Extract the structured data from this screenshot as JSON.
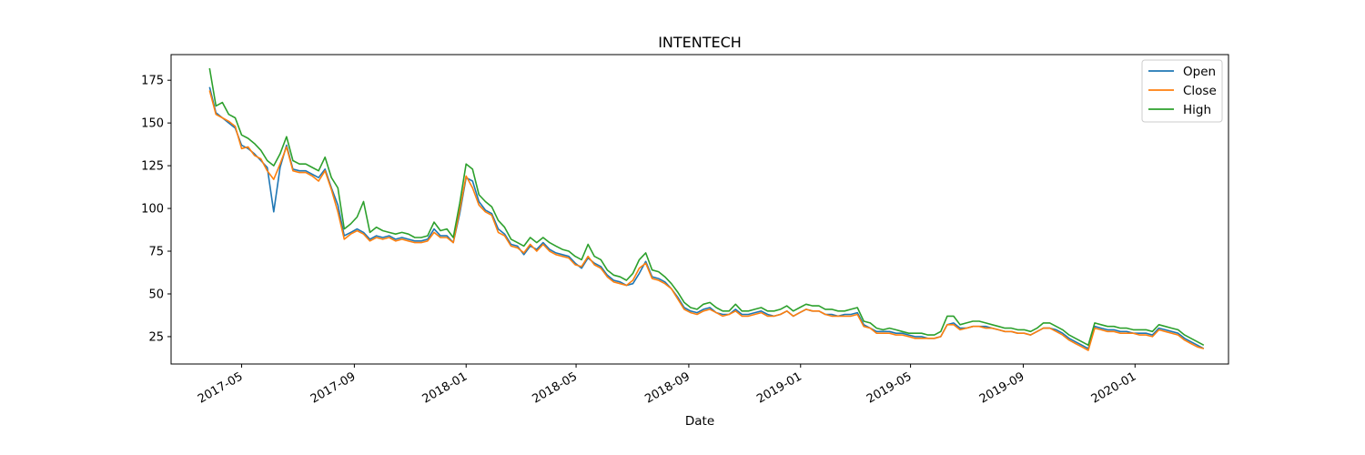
{
  "chart_data": {
    "type": "line",
    "title": "INTENTECH",
    "xlabel": "Date",
    "ylabel": "",
    "x_ticks": [
      "2017-05",
      "2017-09",
      "2018-01",
      "2018-05",
      "2018-09",
      "2019-01",
      "2019-05",
      "2019-09",
      "2020-01"
    ],
    "y_ticks": [
      25,
      50,
      75,
      100,
      125,
      150,
      175
    ],
    "xlim": [
      "2017-02-13",
      "2020-04-12"
    ],
    "ylim": [
      9,
      190
    ],
    "legend_position": "top-right",
    "grid": false,
    "x": [
      "2017-03-27",
      "2017-04-03",
      "2017-04-10",
      "2017-04-17",
      "2017-04-24",
      "2017-05-01",
      "2017-05-08",
      "2017-05-15",
      "2017-05-22",
      "2017-05-29",
      "2017-06-05",
      "2017-06-12",
      "2017-06-19",
      "2017-06-26",
      "2017-07-03",
      "2017-07-10",
      "2017-07-17",
      "2017-07-24",
      "2017-07-31",
      "2017-08-07",
      "2017-08-14",
      "2017-08-21",
      "2017-08-28",
      "2017-09-04",
      "2017-09-11",
      "2017-09-18",
      "2017-09-25",
      "2017-10-02",
      "2017-10-09",
      "2017-10-16",
      "2017-10-23",
      "2017-10-30",
      "2017-11-06",
      "2017-11-13",
      "2017-11-20",
      "2017-11-27",
      "2017-12-04",
      "2017-12-11",
      "2017-12-18",
      "2017-12-25",
      "2018-01-01",
      "2018-01-08",
      "2018-01-15",
      "2018-01-22",
      "2018-01-29",
      "2018-02-05",
      "2018-02-12",
      "2018-02-19",
      "2018-02-26",
      "2018-03-05",
      "2018-03-12",
      "2018-03-19",
      "2018-03-26",
      "2018-04-02",
      "2018-04-09",
      "2018-04-16",
      "2018-04-23",
      "2018-04-30",
      "2018-05-07",
      "2018-05-14",
      "2018-05-21",
      "2018-05-28",
      "2018-06-04",
      "2018-06-11",
      "2018-06-18",
      "2018-06-25",
      "2018-07-02",
      "2018-07-09",
      "2018-07-16",
      "2018-07-23",
      "2018-07-30",
      "2018-08-06",
      "2018-08-13",
      "2018-08-20",
      "2018-08-27",
      "2018-09-03",
      "2018-09-10",
      "2018-09-17",
      "2018-09-24",
      "2018-10-01",
      "2018-10-08",
      "2018-10-15",
      "2018-10-22",
      "2018-10-29",
      "2018-11-05",
      "2018-11-12",
      "2018-11-19",
      "2018-11-26",
      "2018-12-03",
      "2018-12-10",
      "2018-12-17",
      "2018-12-24",
      "2018-12-31",
      "2019-01-07",
      "2019-01-14",
      "2019-01-21",
      "2019-01-28",
      "2019-02-04",
      "2019-02-11",
      "2019-02-18",
      "2019-02-25",
      "2019-03-04",
      "2019-03-11",
      "2019-03-18",
      "2019-03-25",
      "2019-04-01",
      "2019-04-08",
      "2019-04-15",
      "2019-04-22",
      "2019-04-29",
      "2019-05-06",
      "2019-05-13",
      "2019-05-20",
      "2019-05-27",
      "2019-06-03",
      "2019-06-10",
      "2019-06-17",
      "2019-06-24",
      "2019-07-01",
      "2019-07-08",
      "2019-07-15",
      "2019-07-22",
      "2019-07-29",
      "2019-08-05",
      "2019-08-12",
      "2019-08-19",
      "2019-08-26",
      "2019-09-02",
      "2019-09-09",
      "2019-09-16",
      "2019-09-23",
      "2019-09-30",
      "2019-10-07",
      "2019-10-14",
      "2019-10-21",
      "2019-10-28",
      "2019-11-04",
      "2019-11-11",
      "2019-11-18",
      "2019-11-25",
      "2019-12-02",
      "2019-12-09",
      "2019-12-16",
      "2019-12-23",
      "2019-12-30",
      "2020-01-06",
      "2020-01-13",
      "2020-01-20",
      "2020-01-27",
      "2020-02-03",
      "2020-02-10",
      "2020-02-17",
      "2020-02-24",
      "2020-03-02",
      "2020-03-09",
      "2020-03-16"
    ],
    "series": [
      {
        "name": "Open",
        "color": "#1f77b4",
        "values": [
          171,
          156,
          153,
          150,
          147,
          137,
          135,
          132,
          128,
          124,
          98,
          124,
          137,
          123,
          122,
          122,
          120,
          118,
          123,
          112,
          102,
          84,
          86,
          88,
          86,
          82,
          84,
          83,
          84,
          82,
          83,
          82,
          81,
          81,
          82,
          88,
          84,
          84,
          80,
          97,
          118,
          116,
          104,
          99,
          97,
          88,
          85,
          79,
          78,
          73,
          78,
          76,
          80,
          76,
          74,
          73,
          72,
          68,
          65,
          71,
          68,
          66,
          61,
          58,
          57,
          55,
          56,
          62,
          69,
          60,
          59,
          57,
          53,
          48,
          42,
          40,
          39,
          41,
          42,
          39,
          38,
          38,
          41,
          38,
          38,
          39,
          40,
          38,
          37,
          38,
          40,
          37,
          39,
          41,
          40,
          40,
          38,
          38,
          37,
          38,
          38,
          39,
          32,
          30,
          28,
          28,
          28,
          27,
          27,
          26,
          25,
          25,
          24,
          24,
          25,
          32,
          33,
          30,
          30,
          31,
          31,
          31,
          30,
          29,
          28,
          28,
          27,
          27,
          26,
          28,
          30,
          30,
          29,
          27,
          24,
          22,
          20,
          18,
          31,
          30,
          29,
          29,
          28,
          28,
          27,
          27,
          27,
          26,
          30,
          29,
          28,
          27,
          24,
          22,
          20,
          18
        ]
      },
      {
        "name": "Close",
        "color": "#ff7f0e",
        "values": [
          169,
          155,
          153,
          151,
          148,
          135,
          136,
          131,
          129,
          122,
          117,
          126,
          136,
          122,
          121,
          121,
          119,
          116,
          122,
          111,
          98,
          82,
          85,
          87,
          85,
          81,
          83,
          82,
          83,
          81,
          82,
          81,
          80,
          80,
          81,
          86,
          83,
          83,
          80,
          99,
          119,
          112,
          102,
          98,
          96,
          86,
          84,
          78,
          77,
          74,
          79,
          75,
          79,
          75,
          73,
          72,
          71,
          67,
          66,
          72,
          67,
          65,
          60,
          57,
          56,
          55,
          58,
          65,
          68,
          59,
          58,
          56,
          53,
          47,
          41,
          39,
          38,
          40,
          41,
          39,
          37,
          38,
          40,
          37,
          37,
          38,
          39,
          37,
          37,
          38,
          40,
          37,
          39,
          41,
          40,
          40,
          38,
          37,
          37,
          37,
          37,
          38,
          31,
          30,
          27,
          27,
          27,
          26,
          26,
          25,
          24,
          24,
          24,
          24,
          25,
          32,
          32,
          29,
          30,
          31,
          31,
          30,
          30,
          29,
          28,
          28,
          27,
          27,
          26,
          28,
          30,
          30,
          28,
          26,
          23,
          21,
          19,
          17,
          30,
          29,
          28,
          28,
          27,
          27,
          27,
          26,
          26,
          25,
          29,
          28,
          27,
          26,
          23,
          21,
          19,
          18
        ]
      },
      {
        "name": "High",
        "color": "#2ca02c",
        "values": [
          182,
          160,
          162,
          155,
          153,
          143,
          141,
          138,
          134,
          128,
          125,
          132,
          142,
          128,
          126,
          126,
          124,
          122,
          130,
          118,
          112,
          88,
          91,
          95,
          104,
          86,
          89,
          87,
          86,
          85,
          86,
          85,
          83,
          83,
          84,
          92,
          87,
          88,
          83,
          103,
          126,
          123,
          108,
          104,
          101,
          93,
          89,
          82,
          80,
          78,
          83,
          80,
          83,
          80,
          78,
          76,
          75,
          72,
          70,
          79,
          72,
          70,
          64,
          61,
          60,
          58,
          62,
          70,
          74,
          64,
          63,
          60,
          56,
          51,
          45,
          42,
          41,
          44,
          45,
          42,
          40,
          40,
          44,
          40,
          40,
          41,
          42,
          40,
          40,
          41,
          43,
          40,
          42,
          44,
          43,
          43,
          41,
          41,
          40,
          40,
          41,
          42,
          34,
          33,
          30,
          29,
          30,
          29,
          28,
          27,
          27,
          27,
          26,
          26,
          28,
          37,
          37,
          32,
          33,
          34,
          34,
          33,
          32,
          31,
          30,
          30,
          29,
          29,
          28,
          30,
          33,
          33,
          31,
          29,
          26,
          24,
          22,
          20,
          33,
          32,
          31,
          31,
          30,
          30,
          29,
          29,
          29,
          28,
          32,
          31,
          30,
          29,
          26,
          24,
          22,
          20
        ]
      }
    ]
  }
}
